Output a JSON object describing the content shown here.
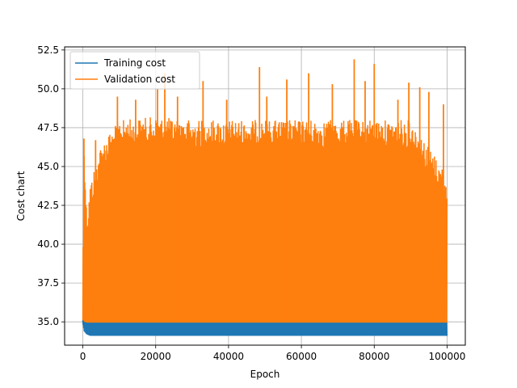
{
  "chart_data": {
    "type": "line",
    "title": "",
    "xlabel": "Epoch",
    "ylabel": "Cost chart",
    "xlim": [
      -5000,
      105000
    ],
    "ylim": [
      33.5,
      52.7
    ],
    "x_ticks": [
      0,
      20000,
      40000,
      60000,
      80000,
      100000
    ],
    "x_tick_labels": [
      "0",
      "20000",
      "40000",
      "60000",
      "80000",
      "100000"
    ],
    "y_ticks": [
      35.0,
      37.5,
      40.0,
      42.5,
      45.0,
      47.5,
      50.0,
      52.5
    ],
    "y_tick_labels": [
      "35.0",
      "37.5",
      "40.0",
      "42.5",
      "45.0",
      "47.5",
      "50.0",
      "52.5"
    ],
    "grid": true,
    "legend_position": "upper-left",
    "series": [
      {
        "name": "Training cost",
        "color": "#1f77b4",
        "x": [
          0,
          300,
          1000,
          2000,
          5000,
          10000,
          20000,
          30000,
          40000,
          50000,
          60000,
          70000,
          80000,
          90000,
          100000
        ],
        "y_low": [
          34.8,
          34.4,
          34.2,
          34.1,
          34.1,
          34.1,
          34.1,
          34.1,
          34.1,
          34.1,
          34.1,
          34.1,
          34.1,
          34.1,
          34.1
        ],
        "y_high": [
          35.1,
          35.0,
          34.95,
          34.95,
          34.95,
          34.95,
          34.95,
          34.95,
          34.95,
          34.95,
          34.95,
          34.95,
          34.95,
          34.95,
          34.95
        ]
      },
      {
        "name": "Validation cost",
        "color": "#ff7f0e",
        "x": [
          0,
          300,
          1000,
          2000,
          5000,
          10000,
          20000,
          30000,
          40000,
          50000,
          60000,
          70000,
          80000,
          90000,
          100000
        ],
        "y_low": [
          34.9,
          34.9,
          34.9,
          34.9,
          34.9,
          34.9,
          34.9,
          34.9,
          34.9,
          34.9,
          34.9,
          34.9,
          34.9,
          34.9,
          34.9
        ],
        "y_high_typical": [
          41.0,
          46.8,
          42.0,
          44.0,
          46.5,
          48.0,
          48.2,
          48.0,
          48.0,
          48.0,
          48.0,
          48.0,
          48.0,
          48.0,
          44.5
        ],
        "peaks": [
          {
            "x": 300,
            "y": 46.8
          },
          {
            "x": 3500,
            "y": 46.7
          },
          {
            "x": 9500,
            "y": 49.5
          },
          {
            "x": 14500,
            "y": 49.3
          },
          {
            "x": 20500,
            "y": 50.0
          },
          {
            "x": 22500,
            "y": 51.0
          },
          {
            "x": 26000,
            "y": 49.5
          },
          {
            "x": 33000,
            "y": 50.5
          },
          {
            "x": 39500,
            "y": 49.3
          },
          {
            "x": 48500,
            "y": 51.4
          },
          {
            "x": 50500,
            "y": 49.5
          },
          {
            "x": 56000,
            "y": 50.6
          },
          {
            "x": 62000,
            "y": 51.0
          },
          {
            "x": 68500,
            "y": 50.3
          },
          {
            "x": 74500,
            "y": 51.9
          },
          {
            "x": 77500,
            "y": 50.5
          },
          {
            "x": 80000,
            "y": 51.6
          },
          {
            "x": 86500,
            "y": 49.3
          },
          {
            "x": 89500,
            "y": 50.4
          },
          {
            "x": 92500,
            "y": 50.1
          },
          {
            "x": 95000,
            "y": 49.8
          },
          {
            "x": 99000,
            "y": 49.0
          }
        ]
      }
    ]
  }
}
